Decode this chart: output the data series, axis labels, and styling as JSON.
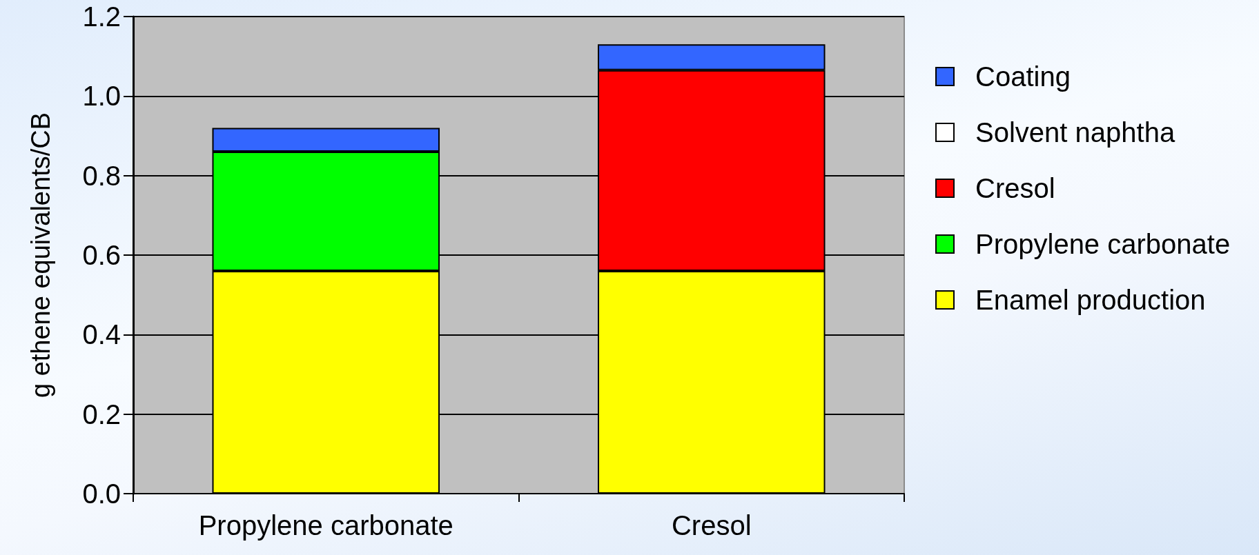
{
  "chart_data": {
    "type": "bar",
    "stacked": true,
    "ylabel": "g ethene equivalents/CB",
    "categories": [
      "Propylene carbonate",
      "Cresol"
    ],
    "series": [
      {
        "name": "Enamel production",
        "color": "#ffff00",
        "values": [
          0.56,
          0.56
        ]
      },
      {
        "name": "Propylene carbonate",
        "color": "#00ff00",
        "values": [
          0.3,
          null
        ]
      },
      {
        "name": "Cresol",
        "color": "#ff0000",
        "values": [
          null,
          0.505
        ]
      },
      {
        "name": "Solvent naphtha",
        "color": "#ffffff",
        "values": [
          null,
          null
        ]
      },
      {
        "name": "Coating",
        "color": "#3366ff",
        "values": [
          0.06,
          0.065
        ]
      }
    ],
    "ylim": [
      0,
      1.2
    ],
    "yticks": [
      {
        "value": 0,
        "label": "0.0"
      },
      0.2,
      0.4,
      0.6,
      0.8,
      {
        "value": 1,
        "label": "1.0"
      },
      1.2
    ],
    "grid": "y",
    "legend": "right"
  }
}
